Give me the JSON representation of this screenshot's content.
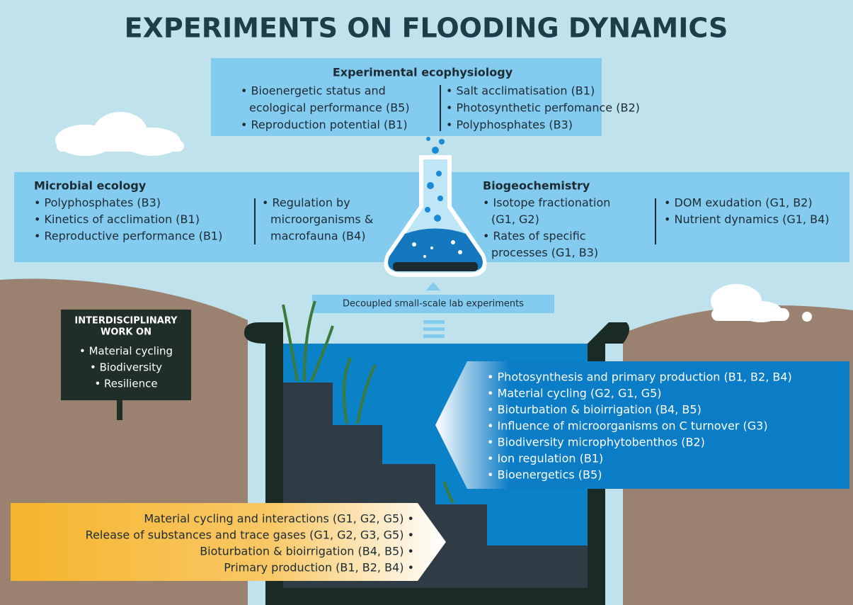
{
  "title": "EXPERIMENTS ON FLOODING DYNAMICS",
  "ecophysiology": {
    "heading": "Experimental ecophysiology",
    "left": [
      "• Bioenergetic status and",
      "ecological performance (B5)",
      "• Reproduction potential (B1)"
    ],
    "right": [
      "• Salt acclimatisation (B1)",
      "• Photosynthetic perfomance (B2)",
      "• Polyphosphates (B3)"
    ]
  },
  "microbial_ecology": {
    "heading": "Microbial ecology",
    "left": [
      "• Polyphosphates (B3)",
      "• Kinetics of acclimation (B1)",
      "• Reproductive performance (B1)"
    ],
    "right": [
      "• Regulation by",
      "microorganisms &",
      "macrofauna (B4)"
    ]
  },
  "biogeochemistry": {
    "heading": "Biogeochemistry",
    "left": [
      "• Isotope fractionation",
      "(G1, G2)",
      "• Rates of specific",
      "processes (G1, B3)"
    ],
    "right": [
      "• DOM exudation (G1, B2)",
      "• Nutrient dynamics (G1, B4)"
    ]
  },
  "lab_label": "Decoupled small-scale lab experiments",
  "sign": {
    "heading": [
      "INTERDISCIPLINARY",
      "WORK ON"
    ],
    "items": [
      "• Material cycling",
      "• Biodiversity",
      "• Resilience"
    ]
  },
  "mesocosm_topics": [
    "• Photosynthesis and primary production (B1, B2, B4)",
    "• Material cycling (G2, G1, G5)",
    "• Bioturbation & bioirrigation (B4, B5)",
    "• Influence of microorganisms on C turnover (G3)",
    "• Biodiversity microphytobenthos (B2)",
    "• Ion regulation (B1)",
    "• Bioenergetics (B5)"
  ],
  "field_topics": [
    "Material cycling and interactions (G1, G2, G5) •",
    "Release of substances and trace gases (G1, G2, G3, G5) •",
    "Bioturbation & bioirrigation (B4, B5) •",
    "Primary production (B1, B2, B4) •"
  ]
}
